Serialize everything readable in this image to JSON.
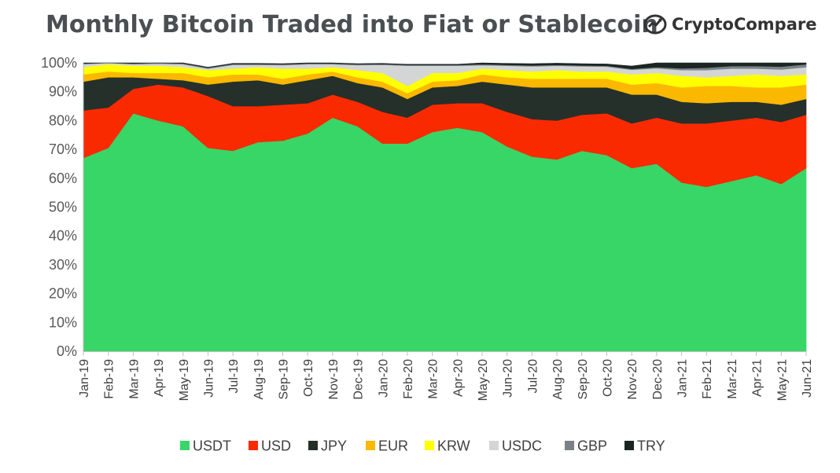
{
  "header": {
    "title": "Monthly Bitcoin Traded into Fiat or Stablecoin",
    "logo_text": "CryptoCompare"
  },
  "chart_data": {
    "type": "area",
    "stacked": true,
    "title": "Monthly Bitcoin Traded into Fiat or Stablecoin",
    "xlabel": "",
    "ylabel": "",
    "ylim": [
      0,
      100
    ],
    "y_tick_labels": [
      "0%",
      "10%",
      "20%",
      "30%",
      "40%",
      "50%",
      "60%",
      "70%",
      "80%",
      "90%",
      "100%"
    ],
    "categories": [
      "Jan-19",
      "Feb-19",
      "Mar-19",
      "Apr-19",
      "May-19",
      "Jun-19",
      "Jul-19",
      "Aug-19",
      "Sep-19",
      "Oct-19",
      "Nov-19",
      "Dec-19",
      "Jan-20",
      "Feb-20",
      "Mar-20",
      "Apr-20",
      "May-20",
      "Jun-20",
      "Jul-20",
      "Aug-20",
      "Sep-20",
      "Oct-20",
      "Nov-20",
      "Dec-20",
      "Jan-21",
      "Feb-21",
      "Mar-21",
      "Apr-21",
      "May-21",
      "Jun-21"
    ],
    "legend_position": "bottom",
    "series": [
      {
        "name": "USDT",
        "color": "#37d667",
        "values": [
          67,
          70.5,
          82.5,
          80,
          78,
          70.5,
          69.5,
          72.5,
          73,
          75.5,
          81,
          78,
          72,
          72,
          76,
          77.5,
          76,
          71,
          67.5,
          66.5,
          69.5,
          68,
          63.5,
          65,
          58.5,
          57,
          59,
          61,
          58,
          63.5
        ]
      },
      {
        "name": "USD",
        "color": "#fa2a00",
        "values": [
          16.5,
          14,
          8.5,
          12.5,
          13.5,
          18,
          15.5,
          12.5,
          12.5,
          10.5,
          8,
          8.5,
          11,
          9,
          9.5,
          8.5,
          10,
          12,
          13,
          13.5,
          12.5,
          14.5,
          15.5,
          16,
          20.5,
          22,
          21,
          20,
          21.5,
          18.5
        ]
      },
      {
        "name": "JPY",
        "color": "#25302b",
        "values": [
          10,
          10.5,
          4,
          2,
          2.5,
          4,
          8.5,
          9,
          7,
          8,
          6.5,
          6.5,
          8.5,
          6.5,
          6,
          6,
          7.5,
          9.5,
          11,
          11.5,
          9.5,
          9,
          10,
          8,
          7.5,
          7,
          6.5,
          5.5,
          6,
          5.5
        ]
      },
      {
        "name": "EUR",
        "color": "#fbb800",
        "values": [
          2.5,
          2,
          1.5,
          2,
          2.5,
          2.5,
          2.5,
          2,
          2,
          2,
          1.5,
          2,
          2,
          2,
          2,
          2,
          2.5,
          2.5,
          3,
          3,
          3,
          3,
          3.5,
          4,
          5,
          6,
          5.5,
          5,
          6,
          5
        ]
      },
      {
        "name": "KRW",
        "color": "#ffff00",
        "values": [
          2.5,
          2.5,
          2.5,
          2.5,
          2,
          2.5,
          2,
          2.5,
          3.5,
          2,
          1.5,
          2.5,
          3,
          2.5,
          3,
          2.5,
          2,
          2.5,
          2.5,
          3,
          2.5,
          2.5,
          3.5,
          3.5,
          4,
          3,
          3.5,
          4.5,
          4,
          3.5
        ]
      },
      {
        "name": "USDC",
        "color": "#d4d6d6",
        "values": [
          1,
          0.5,
          0.5,
          0.7,
          1,
          0.5,
          1.3,
          0.8,
          1.2,
          1.5,
          1,
          1.7,
          2.8,
          7,
          2.5,
          2.5,
          1.2,
          1.5,
          1.8,
          1.5,
          1.8,
          1.7,
          1.6,
          1.6,
          2,
          2.5,
          2.5,
          2,
          2.2,
          2.5
        ]
      },
      {
        "name": "GBP",
        "color": "#7a8288",
        "values": [
          0.3,
          0.3,
          0.3,
          0.3,
          0.3,
          0.3,
          0.3,
          0.3,
          0.3,
          0.3,
          0.3,
          0.3,
          0.3,
          0.3,
          0.3,
          0.3,
          0.3,
          0.3,
          0.3,
          0.3,
          0.3,
          0.3,
          0.3,
          0.4,
          0.6,
          0.8,
          0.9,
          0.9,
          1,
          1
        ]
      },
      {
        "name": "TRY",
        "color": "#1b2622",
        "values": [
          0.2,
          0.2,
          0.2,
          0.2,
          0.2,
          0.2,
          0.2,
          0.2,
          0.2,
          0.2,
          0.2,
          0.2,
          0.2,
          0.2,
          0.2,
          0.2,
          0.5,
          0.5,
          0.6,
          0.6,
          0.6,
          0.6,
          1,
          1.5,
          1.9,
          1.7,
          1.1,
          1.1,
          1.3,
          0.5
        ]
      }
    ]
  }
}
